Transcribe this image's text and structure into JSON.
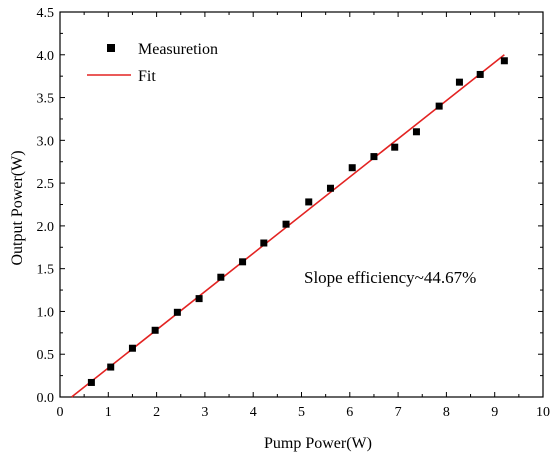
{
  "chart_data": {
    "type": "scatter",
    "title": "",
    "xlabel": "Pump Power(W)",
    "ylabel": "Output Power(W)",
    "xlim": [
      0,
      10
    ],
    "ylim": [
      0,
      4.5
    ],
    "xticks": [
      "0",
      "1",
      "2",
      "3",
      "4",
      "5",
      "6",
      "7",
      "8",
      "9",
      "10"
    ],
    "yticks": [
      "0.0",
      "0.5",
      "1.0",
      "1.5",
      "2.0",
      "2.5",
      "3.0",
      "3.5",
      "4.0",
      "4.5"
    ],
    "grid": false,
    "legend_position": "top-left",
    "annotation": "Slope efficiency~44.67%",
    "series": [
      {
        "name": "Measuretion",
        "style": "scatter",
        "marker": "square",
        "color": "#000000",
        "x": [
          0.65,
          1.05,
          1.5,
          1.97,
          2.43,
          2.88,
          3.33,
          3.78,
          4.22,
          4.68,
          5.15,
          5.6,
          6.05,
          6.5,
          6.93,
          7.38,
          7.85,
          8.27,
          8.7,
          9.2
        ],
        "y": [
          0.17,
          0.35,
          0.57,
          0.78,
          0.99,
          1.15,
          1.4,
          1.58,
          1.8,
          2.02,
          2.28,
          2.44,
          2.68,
          2.81,
          2.92,
          3.1,
          3.4,
          3.68,
          3.77,
          3.93
        ]
      },
      {
        "name": "Fit",
        "style": "line",
        "color": "#e32322",
        "x": [
          0.24,
          9.2
        ],
        "y": [
          0.0,
          4.0
        ]
      }
    ]
  }
}
